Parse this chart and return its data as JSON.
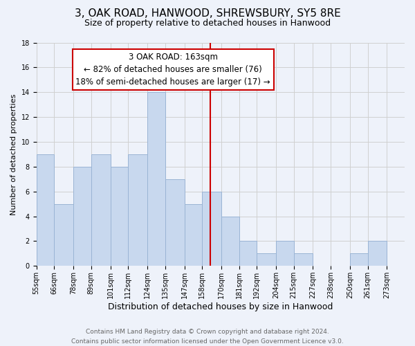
{
  "title": "3, OAK ROAD, HANWOOD, SHREWSBURY, SY5 8RE",
  "subtitle": "Size of property relative to detached houses in Hanwood",
  "xlabel": "Distribution of detached houses by size in Hanwood",
  "ylabel": "Number of detached properties",
  "footer_line1": "Contains HM Land Registry data © Crown copyright and database right 2024.",
  "footer_line2": "Contains public sector information licensed under the Open Government Licence v3.0.",
  "bar_edges": [
    55,
    66,
    78,
    89,
    101,
    112,
    124,
    135,
    147,
    158,
    170,
    181,
    192,
    204,
    215,
    227,
    238,
    250,
    261,
    273,
    284
  ],
  "bar_heights": [
    9,
    5,
    8,
    9,
    8,
    9,
    14,
    7,
    5,
    6,
    4,
    2,
    1,
    2,
    1,
    0,
    0,
    1,
    2,
    0
  ],
  "bar_color": "#c8d8ee",
  "bar_edgecolor": "#9ab4d4",
  "property_size": 163,
  "vline_color": "#cc0000",
  "annotation_line1": "3 OAK ROAD: 163sqm",
  "annotation_line2": "← 82% of detached houses are smaller (76)",
  "annotation_line3": "18% of semi-detached houses are larger (17) →",
  "annotation_box_edgecolor": "#cc0000",
  "annotation_box_facecolor": "#ffffff",
  "ylim": [
    0,
    18
  ],
  "yticks": [
    0,
    2,
    4,
    6,
    8,
    10,
    12,
    14,
    16,
    18
  ],
  "grid_color": "#d0d0d0",
  "bg_color": "#eef2fa",
  "title_fontsize": 11,
  "subtitle_fontsize": 9,
  "xlabel_fontsize": 9,
  "ylabel_fontsize": 8,
  "tick_fontsize": 7,
  "footer_fontsize": 6.5,
  "annotation_fontsize": 8.5
}
